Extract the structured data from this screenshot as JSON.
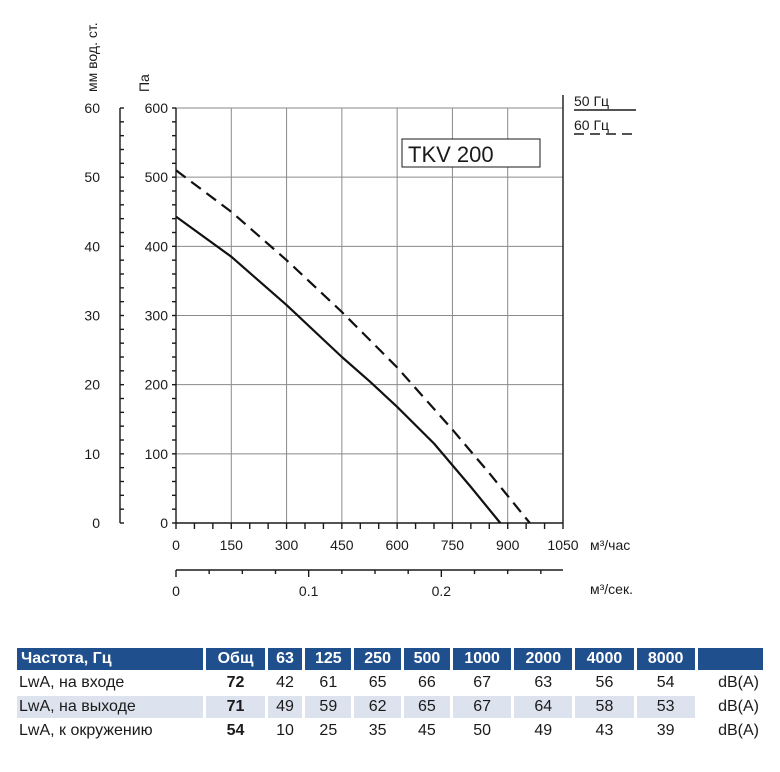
{
  "chart_data": {
    "type": "line",
    "title": "TKV 200",
    "xlabel": "м³/час",
    "x2label": "м³/сек.",
    "ylabel": "Па",
    "y2label": "мм вод. ст.",
    "xlim": [
      0,
      1050
    ],
    "ylim": [
      0,
      600
    ],
    "xticks": [
      0,
      150,
      300,
      450,
      600,
      750,
      900,
      1050
    ],
    "yticks": [
      0,
      100,
      200,
      300,
      400,
      500,
      600
    ],
    "x2ticks": [
      0,
      0.1,
      0.2
    ],
    "x2lim": [
      0,
      0.2917
    ],
    "y2ticks": [
      0,
      10,
      20,
      30,
      40,
      50,
      60
    ],
    "grid": true,
    "legend_position": "top-right",
    "series": [
      {
        "name": "50 Гц",
        "style": "solid",
        "x": [
          0,
          150,
          300,
          450,
          525,
          600,
          700,
          800,
          880
        ],
        "y": [
          443,
          385,
          315,
          240,
          205,
          168,
          115,
          52,
          0
        ]
      },
      {
        "name": "60 Гц",
        "style": "dashed",
        "x": [
          0,
          150,
          300,
          450,
          600,
          750,
          850,
          960
        ],
        "y": [
          510,
          450,
          380,
          305,
          225,
          135,
          72,
          0
        ]
      }
    ]
  },
  "table": {
    "headers": [
      "Частота, Гц",
      "Общ",
      "63",
      "125",
      "250",
      "500",
      "1000",
      "2000",
      "4000",
      "8000"
    ],
    "rows": [
      {
        "label": "LwA, на входе",
        "total": "72",
        "values": [
          "42",
          "61",
          "65",
          "66",
          "67",
          "63",
          "56",
          "54"
        ],
        "unit": "dB(A)"
      },
      {
        "label": "LwA, на выходе",
        "total": "71",
        "values": [
          "49",
          "59",
          "62",
          "65",
          "67",
          "64",
          "58",
          "53"
        ],
        "unit": "dB(A)"
      },
      {
        "label": "LwA, к окружению",
        "total": "54",
        "values": [
          "10",
          "25",
          "35",
          "45",
          "50",
          "49",
          "43",
          "39"
        ],
        "unit": "dB(A)"
      }
    ]
  },
  "colors": {
    "table_header": "#1f4f8c",
    "row_shade": "#dde3ee"
  }
}
